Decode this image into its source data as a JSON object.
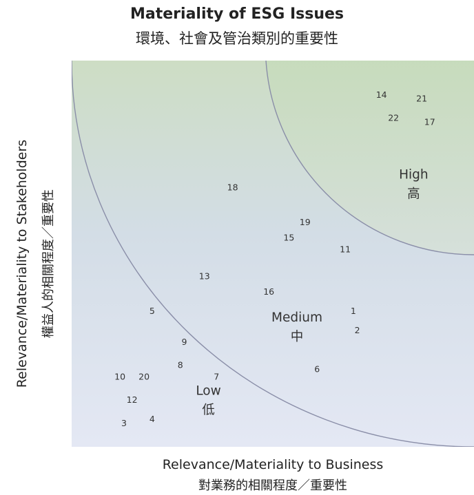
{
  "chart_data": {
    "type": "scatter",
    "title": "Materiality of ESG Issues",
    "subtitle": "環境、社會及管治類別的重要性",
    "xlabel": "Relevance/Materiality to Business",
    "xlabel_zh": "對業務的相關程度／重要性",
    "ylabel": "Relevance/Materiality to Stakeholders",
    "ylabel_zh": "權益人的相關程度／重要性",
    "xlim": [
      0,
      100
    ],
    "ylim": [
      0,
      100
    ],
    "grid": false,
    "zones": [
      {
        "label": "Low",
        "label_zh": "低",
        "x": 34,
        "y": 12
      },
      {
        "label": "Medium",
        "label_zh": "中",
        "x": 56,
        "y": 31
      },
      {
        "label": "High",
        "label_zh": "高",
        "x": 85,
        "y": 68
      }
    ],
    "points": [
      {
        "id": "14",
        "x": 77,
        "y": 91
      },
      {
        "id": "21",
        "x": 87,
        "y": 90
      },
      {
        "id": "22",
        "x": 80,
        "y": 85
      },
      {
        "id": "17",
        "x": 89,
        "y": 84
      },
      {
        "id": "18",
        "x": 40,
        "y": 67
      },
      {
        "id": "19",
        "x": 58,
        "y": 58
      },
      {
        "id": "15",
        "x": 54,
        "y": 54
      },
      {
        "id": "11",
        "x": 68,
        "y": 51
      },
      {
        "id": "13",
        "x": 33,
        "y": 44
      },
      {
        "id": "16",
        "x": 49,
        "y": 40
      },
      {
        "id": "1",
        "x": 70,
        "y": 35
      },
      {
        "id": "2",
        "x": 71,
        "y": 30
      },
      {
        "id": "5",
        "x": 20,
        "y": 35
      },
      {
        "id": "9",
        "x": 28,
        "y": 27
      },
      {
        "id": "8",
        "x": 27,
        "y": 21
      },
      {
        "id": "7",
        "x": 36,
        "y": 18
      },
      {
        "id": "6",
        "x": 61,
        "y": 20
      },
      {
        "id": "10",
        "x": 12,
        "y": 18
      },
      {
        "id": "20",
        "x": 18,
        "y": 18
      },
      {
        "id": "12",
        "x": 15,
        "y": 12
      },
      {
        "id": "4",
        "x": 20,
        "y": 7
      },
      {
        "id": "3",
        "x": 13,
        "y": 6
      }
    ]
  }
}
